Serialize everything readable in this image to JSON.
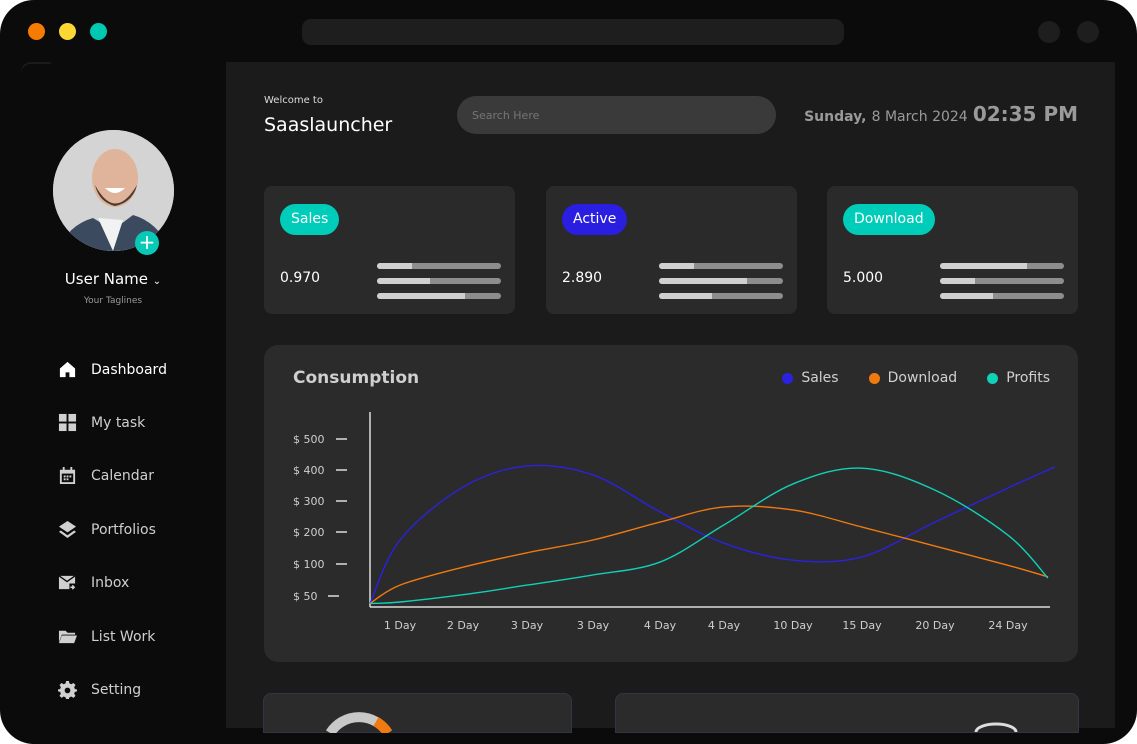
{
  "window": {
    "controls": [
      {
        "name": "close",
        "color": "#f57c00"
      },
      {
        "name": "minimize",
        "color": "#fdd835"
      },
      {
        "name": "maximize",
        "color": "#00c9b2"
      }
    ]
  },
  "user": {
    "name": "User Name",
    "tagline": "Your Taglines"
  },
  "sidebar": {
    "items": [
      {
        "label": "Dashboard",
        "icon": "home-icon",
        "active": true
      },
      {
        "label": "My task",
        "icon": "grid-icon"
      },
      {
        "label": "Calendar",
        "icon": "calendar-icon"
      },
      {
        "label": "Portfolios",
        "icon": "layers-icon"
      },
      {
        "label": "Inbox",
        "icon": "mail-forward-icon"
      },
      {
        "label": "List Work",
        "icon": "folder-icon"
      },
      {
        "label": "Setting",
        "icon": "gear-icon"
      }
    ]
  },
  "header": {
    "welcome": "Welcome to",
    "title": "Saaslauncher",
    "search_placeholder": "Search Here",
    "day": "Sunday,",
    "date": "8 March 2024",
    "time": "02:35 PM"
  },
  "stats": [
    {
      "label": "Sales",
      "value": "0.970",
      "color": "#00cdb9",
      "progress": [
        0.28,
        0.43,
        0.71
      ]
    },
    {
      "label": "Active",
      "value": "2.890",
      "color": "#2a1ee0",
      "progress": [
        0.28,
        0.71,
        0.43
      ]
    },
    {
      "label": "Download",
      "value": "5.000",
      "color": "#00cdb9",
      "progress": [
        0.7,
        0.28,
        0.43
      ]
    }
  ],
  "chart_data": {
    "type": "line",
    "title": "Consumption",
    "categories": [
      "1 Day",
      "2 Day",
      "3 Day",
      "3 Day",
      "4 Day",
      "4 Day",
      "10 Day",
      "15 Day",
      "20 Day",
      "24 Day"
    ],
    "yticks": [
      "$ 500",
      "$ 400",
      "$ 300",
      "$ 200",
      "$ 100",
      "$ 50"
    ],
    "ytick_values": [
      500,
      400,
      300,
      200,
      100,
      50
    ],
    "legend_position": "top-right",
    "grid": false,
    "series": [
      {
        "name": "Sales",
        "color": "#2a22e0",
        "start": 35,
        "values": [
          175,
          345,
          413,
          384,
          265,
          165,
          112,
          122,
          232,
          342
        ],
        "end": 410
      },
      {
        "name": "Download",
        "color": "#f07a10",
        "start": 35,
        "values": [
          67,
          95,
          135,
          175,
          232,
          281,
          271,
          216,
          156,
          98
        ],
        "end": 80
      },
      {
        "name": "Profits",
        "color": "#10d0b8",
        "start": 35,
        "values": [
          38,
          52,
          67,
          83,
          106,
          223,
          355,
          406,
          335,
          190
        ],
        "end": 78
      }
    ]
  }
}
